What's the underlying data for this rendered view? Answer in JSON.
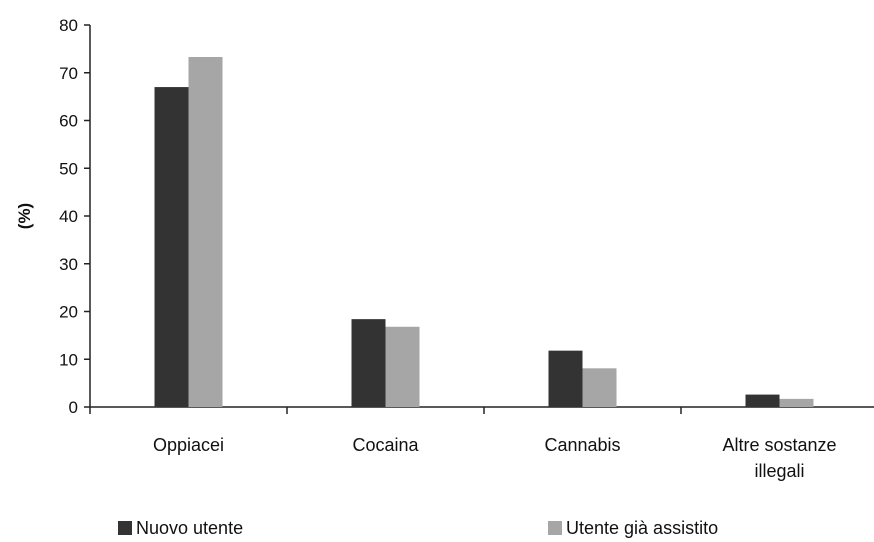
{
  "chart_data": {
    "type": "bar",
    "categories": [
      "Oppiacei",
      "Cocaina",
      "Cannabis",
      "Altre sostanze illegali"
    ],
    "series": [
      {
        "name": "Nuovo utente",
        "values": [
          67,
          18.4,
          11.8,
          2.6
        ],
        "color": "#333333"
      },
      {
        "name": "Utente già assistito",
        "values": [
          73.3,
          16.8,
          8.1,
          1.7
        ],
        "color": "#a6a6a6"
      }
    ],
    "ylabel": "(%)",
    "ylim": [
      0,
      80
    ],
    "yticks": [
      0,
      10,
      20,
      30,
      40,
      50,
      60,
      70,
      80
    ],
    "grid": false,
    "legend_position": "bottom"
  }
}
